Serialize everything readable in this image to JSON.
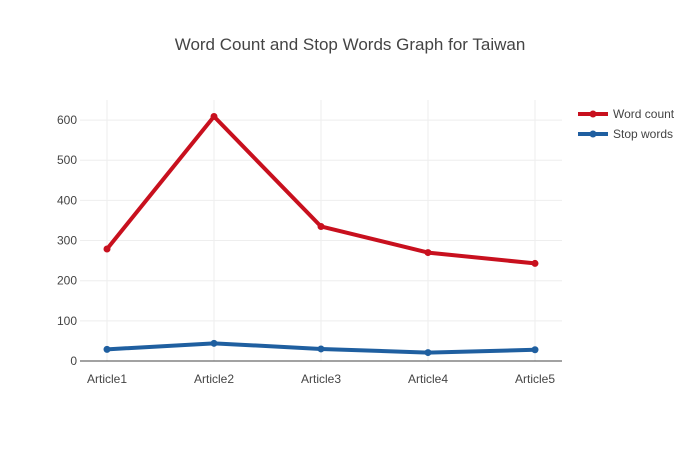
{
  "chart_data": {
    "type": "line",
    "title": "Word Count and Stop Words Graph for Taiwan",
    "xlabel": "",
    "ylabel": "",
    "categories": [
      "Article1",
      "Article2",
      "Article3",
      "Article4",
      "Article5"
    ],
    "ylim": [
      0,
      650
    ],
    "yticks": [
      0,
      100,
      200,
      300,
      400,
      500,
      600
    ],
    "grid": true,
    "legend_position": "top-right",
    "series": [
      {
        "name": "Word count",
        "values": [
          279,
          609,
          335,
          270,
          243
        ],
        "color": "#c8101e"
      },
      {
        "name": "Stop words",
        "values": [
          29,
          44,
          30,
          21,
          28
        ],
        "color": "#1f5fa0"
      }
    ]
  }
}
